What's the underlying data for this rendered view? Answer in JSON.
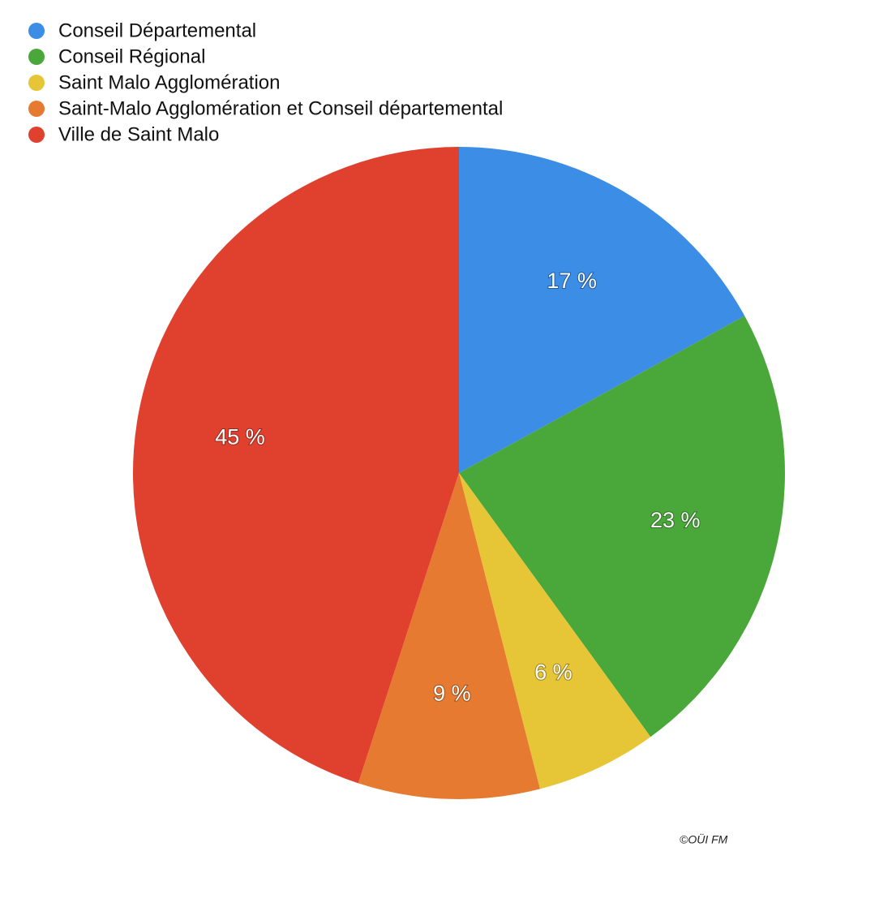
{
  "chart_data": {
    "type": "pie",
    "categories": [
      "Conseil Départemental",
      "Conseil Régional",
      "Saint Malo Agglomération",
      "Saint-Malo Agglomération et Conseil départemental",
      "Ville de Saint Malo"
    ],
    "values": [
      17,
      23,
      6,
      9,
      45
    ],
    "value_labels": [
      "17 %",
      "23 %",
      "6 %",
      "9 %",
      "45 %"
    ],
    "colors": [
      "#3b8de6",
      "#4aa83a",
      "#e6c636",
      "#e67a30",
      "#e0402e"
    ],
    "legend": "top-left",
    "credit": "©OÜI FM"
  }
}
